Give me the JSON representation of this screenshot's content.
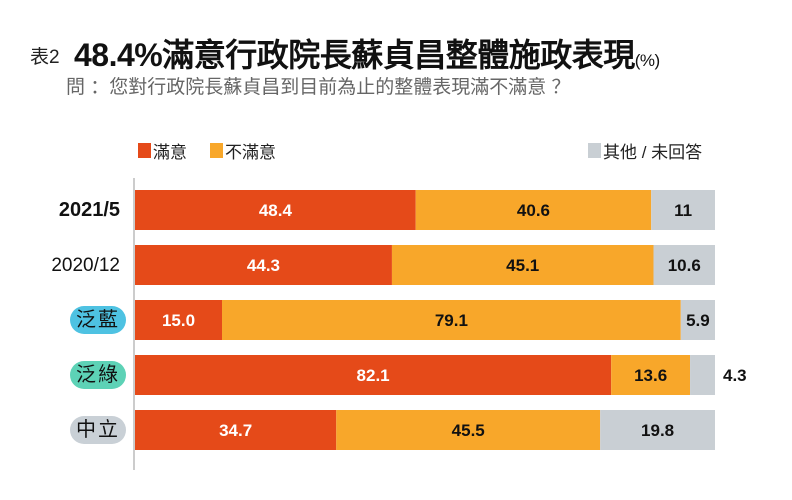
{
  "header": {
    "tag": "表2",
    "title": "48.4%滿意行政院長蘇貞昌整體施政表現",
    "unit": "(%)",
    "subtitle": "問 ：您對行政院長蘇貞昌到目前為止的整體表現滿不滿意 ？"
  },
  "colors": {
    "satisfied": "#E54A19",
    "unsatisfied": "#F8A72A",
    "other": "#C9CFD4",
    "badge_blue": "#4EC2E2",
    "badge_green": "#5DD2B6",
    "badge_gray": "#C9D0D6"
  },
  "chart_data": {
    "type": "bar",
    "orientation": "horizontal",
    "stacked": true,
    "xlim": [
      0,
      100
    ],
    "legend_placement": "top",
    "categories": [
      "2021/5",
      "2020/12",
      "泛藍",
      "泛綠",
      "中立"
    ],
    "series": [
      {
        "name": "滿意",
        "values": [
          48.4,
          44.3,
          15.0,
          82.1,
          34.7
        ],
        "labels": [
          "48.4",
          "44.3",
          "15.0",
          "82.1",
          "34.7"
        ]
      },
      {
        "name": "不滿意",
        "values": [
          40.6,
          45.1,
          79.1,
          13.6,
          45.5
        ],
        "labels": [
          "40.6",
          "45.1",
          "79.1",
          "13.6",
          "45.5"
        ]
      },
      {
        "name": "其他 / 未回答",
        "values": [
          11,
          10.6,
          5.9,
          4.3,
          19.8
        ],
        "labels": [
          "11",
          "10.6",
          "5.9",
          "4.3",
          "19.8"
        ]
      }
    ]
  }
}
